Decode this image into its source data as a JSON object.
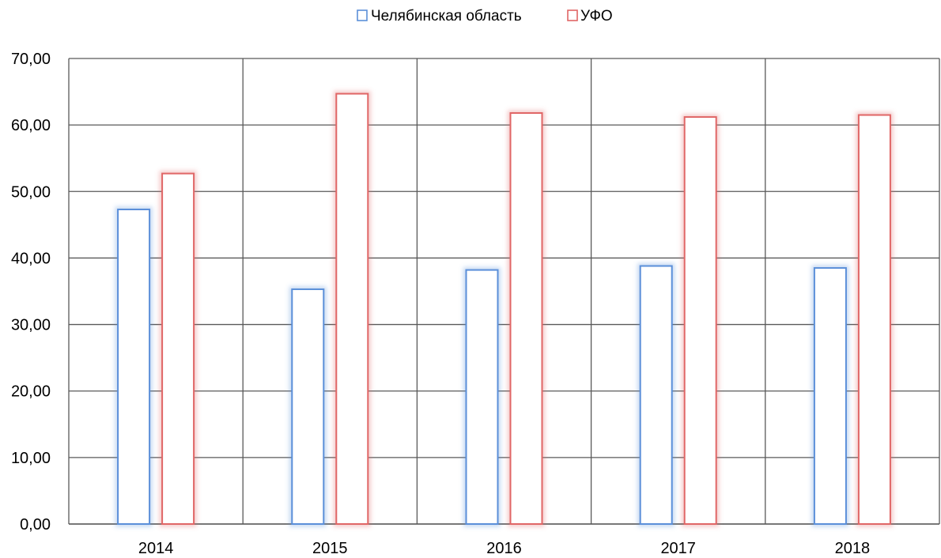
{
  "chart_data": {
    "type": "bar",
    "title": "",
    "xlabel": "",
    "ylabel": "",
    "categories": [
      "2014",
      "2015",
      "2016",
      "2017",
      "2018"
    ],
    "series": [
      {
        "name": "Челябинская область",
        "color": "#5B8FD9",
        "values": [
          47.3,
          35.3,
          38.2,
          38.8,
          38.5
        ]
      },
      {
        "name": "УФО",
        "color": "#E06666",
        "values": [
          52.7,
          64.7,
          61.8,
          61.2,
          61.5
        ]
      }
    ],
    "ylim": [
      0,
      70
    ],
    "yticks": [
      "0,00",
      "10,00",
      "20,00",
      "30,00",
      "40,00",
      "50,00",
      "60,00",
      "70,00"
    ],
    "grid": true,
    "legend_position": "top-center"
  }
}
